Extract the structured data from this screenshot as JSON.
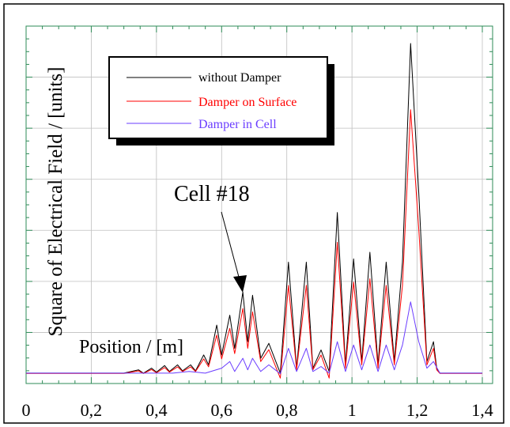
{
  "chart_data": {
    "type": "line",
    "title": "",
    "xlabel": "Position / [m]",
    "ylabel": "Square of Electrical Field / [units]",
    "xlim": [
      0,
      1.4
    ],
    "ylim": [
      0,
      1
    ],
    "x_tick_labels": [
      "0",
      "0,2",
      "0,4",
      "0,6",
      "0,8",
      "1",
      "1,2",
      "1,4"
    ],
    "x_ticks": [
      0,
      0.2,
      0.4,
      0.6,
      0.8,
      1.0,
      1.2,
      1.4
    ],
    "y_tick_labels_shown": false,
    "grid": true,
    "legend_position": "top-left",
    "annotation": {
      "text": "Cell #18",
      "x": 0.66,
      "y": 0.25
    },
    "series": [
      {
        "name": "without Damper",
        "color": "#000000",
        "x": [
          0,
          0.3,
          0.345,
          0.36,
          0.385,
          0.4,
          0.425,
          0.44,
          0.465,
          0.48,
          0.505,
          0.52,
          0.545,
          0.56,
          0.585,
          0.6,
          0.625,
          0.64,
          0.665,
          0.68,
          0.695,
          0.72,
          0.745,
          0.78,
          0.805,
          0.83,
          0.86,
          0.88,
          0.905,
          0.93,
          0.955,
          0.98,
          1.005,
          1.03,
          1.055,
          1.08,
          1.105,
          1.13,
          1.155,
          1.18,
          1.205,
          1.23,
          1.25,
          1.26,
          1.27,
          1.4
        ],
        "y": [
          0.005,
          0.005,
          0.015,
          0.005,
          0.02,
          0.008,
          0.028,
          0.01,
          0.03,
          0.012,
          0.03,
          0.012,
          0.06,
          0.03,
          0.15,
          0.06,
          0.18,
          0.08,
          0.25,
          0.1,
          0.24,
          0.05,
          0.095,
          0.005,
          0.34,
          0.02,
          0.34,
          0.02,
          0.075,
          0.01,
          0.49,
          0.03,
          0.35,
          0.04,
          0.37,
          0.03,
          0.34,
          0.04,
          0.34,
          1.0,
          0.55,
          0.04,
          0.1,
          0.02,
          0.005,
          0.005
        ]
      },
      {
        "name": "Damper on Surface",
        "color": "#ff0000",
        "x": [
          0,
          0.3,
          0.345,
          0.36,
          0.385,
          0.4,
          0.425,
          0.44,
          0.465,
          0.48,
          0.505,
          0.52,
          0.545,
          0.56,
          0.585,
          0.6,
          0.625,
          0.64,
          0.665,
          0.68,
          0.695,
          0.72,
          0.745,
          0.78,
          0.805,
          0.83,
          0.86,
          0.88,
          0.905,
          0.93,
          0.955,
          0.98,
          1.005,
          1.03,
          1.055,
          1.08,
          1.105,
          1.13,
          1.155,
          1.18,
          1.205,
          1.23,
          1.25,
          1.26,
          1.27,
          1.4
        ],
        "y": [
          0.004,
          0.004,
          0.012,
          0.004,
          0.016,
          0.006,
          0.022,
          0.008,
          0.024,
          0.01,
          0.024,
          0.01,
          0.048,
          0.024,
          0.12,
          0.048,
          0.14,
          0.064,
          0.2,
          0.08,
          0.19,
          0.04,
          0.076,
          -0.01,
          0.27,
          0.015,
          0.27,
          0.015,
          0.06,
          -0.01,
          0.4,
          0.02,
          0.28,
          0.03,
          0.29,
          0.02,
          0.27,
          0.03,
          0.27,
          0.8,
          0.44,
          0.03,
          0.08,
          0.015,
          0.004,
          0.004
        ]
      },
      {
        "name": "Damper in Cell",
        "color": "#6a3cff",
        "x": [
          0,
          0.45,
          0.5,
          0.55,
          0.6,
          0.625,
          0.64,
          0.665,
          0.68,
          0.695,
          0.72,
          0.745,
          0.78,
          0.805,
          0.83,
          0.86,
          0.88,
          0.905,
          0.93,
          0.955,
          0.98,
          1.005,
          1.03,
          1.055,
          1.08,
          1.105,
          1.13,
          1.155,
          1.18,
          1.205,
          1.23,
          1.25,
          1.27,
          1.4
        ],
        "y": [
          0.005,
          0.005,
          0.01,
          0.005,
          0.02,
          0.04,
          0.01,
          0.05,
          0.015,
          0.05,
          0.01,
          0.03,
          0.003,
          0.08,
          0.01,
          0.08,
          0.01,
          0.025,
          0.005,
          0.1,
          0.01,
          0.09,
          0.015,
          0.09,
          0.01,
          0.09,
          0.015,
          0.09,
          0.22,
          0.1,
          0.02,
          0.04,
          0.005,
          0.005
        ]
      }
    ]
  }
}
